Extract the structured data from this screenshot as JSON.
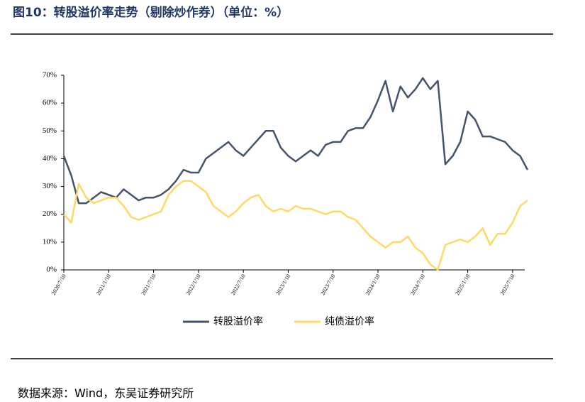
{
  "chart_data": {
    "type": "line",
    "title": "图10：转股溢价率走势（剔除炒作券）（单位：%）",
    "source": "数据来源：Wind，东吴证券研究所",
    "x": [
      "2020/7/10",
      "2020/8/10",
      "2020/9/10",
      "2020/10/10",
      "2020/11/10",
      "2020/12/10",
      "2021/1/10",
      "2021/2/10",
      "2021/3/10",
      "2021/4/10",
      "2021/5/10",
      "2021/6/10",
      "2021/7/10",
      "2021/8/10",
      "2021/9/10",
      "2021/10/10",
      "2021/11/10",
      "2021/12/10",
      "2022/1/10",
      "2022/2/10",
      "2022/3/10",
      "2022/4/10",
      "2022/5/10",
      "2022/6/10",
      "2022/7/10",
      "2022/8/10",
      "2022/9/10",
      "2022/10/10",
      "2022/11/10",
      "2022/12/10",
      "2023/1/10",
      "2023/2/10",
      "2023/3/10",
      "2023/4/10",
      "2023/5/10",
      "2023/6/10",
      "2023/7/10",
      "2023/8/10",
      "2023/9/10",
      "2023/10/10",
      "2023/11/10",
      "2023/12/10",
      "2024/1/10",
      "2024/2/10",
      "2024/3/10",
      "2024/4/10",
      "2024/5/10",
      "2024/6/10",
      "2024/7/10",
      "2024/8/10",
      "2024/9/10",
      "2024/10/10",
      "2024/11/10",
      "2024/12/10",
      "2025/1/10",
      "2025/2/10",
      "2025/3/10",
      "2025/4/10",
      "2025/5/10",
      "2025/6/10",
      "2025/7/10",
      "2025/8/10",
      "2025/9/10"
    ],
    "series": [
      {
        "name": "转股溢价率",
        "color": "#44546a",
        "values": [
          41,
          34,
          24,
          24,
          26,
          28,
          27,
          26,
          29,
          27,
          25,
          26,
          26,
          27,
          29,
          32,
          36,
          35,
          35,
          40,
          42,
          44,
          46,
          43,
          41,
          44,
          47,
          50,
          50,
          44,
          41,
          39,
          41,
          43,
          41,
          45,
          46,
          46,
          50,
          51,
          51,
          55,
          61,
          68,
          57,
          66,
          62,
          65,
          69,
          65,
          68,
          38,
          41,
          46,
          57,
          54,
          48,
          48,
          47,
          46,
          43,
          41,
          36
        ]
      },
      {
        "name": "纯债溢价率",
        "color": "#ffd966",
        "values": [
          20,
          17,
          31,
          26,
          24,
          25,
          26,
          26,
          23,
          19,
          18,
          19,
          20,
          21,
          27,
          30,
          32,
          32,
          30,
          28,
          23,
          21,
          19,
          21,
          24,
          26,
          27,
          23,
          21,
          22,
          21,
          23,
          22,
          22,
          21,
          20,
          21,
          21,
          19,
          18,
          15,
          12,
          10,
          8,
          10,
          10,
          12,
          8,
          6,
          2,
          0,
          9,
          10,
          11,
          10,
          12,
          15,
          9,
          13,
          13,
          17,
          23,
          25
        ]
      }
    ],
    "xlim": [
      "2020/7/10",
      "2025/9/10"
    ],
    "xticks": [
      "2020/7/10",
      "2021/1/10",
      "2021/7/10",
      "2022/1/10",
      "2022/7/10",
      "2023/1/10",
      "2023/7/10",
      "2024/1/10",
      "2024/7/10",
      "2025/1/10",
      "2025/7/10"
    ],
    "ylim": [
      0,
      70
    ],
    "yticks": [
      {
        "value": 0,
        "label": "0%"
      },
      {
        "value": 10,
        "label": "10%"
      },
      {
        "value": 20,
        "label": "20%"
      },
      {
        "value": 30,
        "label": "30%"
      },
      {
        "value": 40,
        "label": "40%"
      },
      {
        "value": 50,
        "label": "50%"
      },
      {
        "value": 60,
        "label": "60%"
      },
      {
        "value": 70,
        "label": "70%"
      }
    ],
    "grid": false
  }
}
